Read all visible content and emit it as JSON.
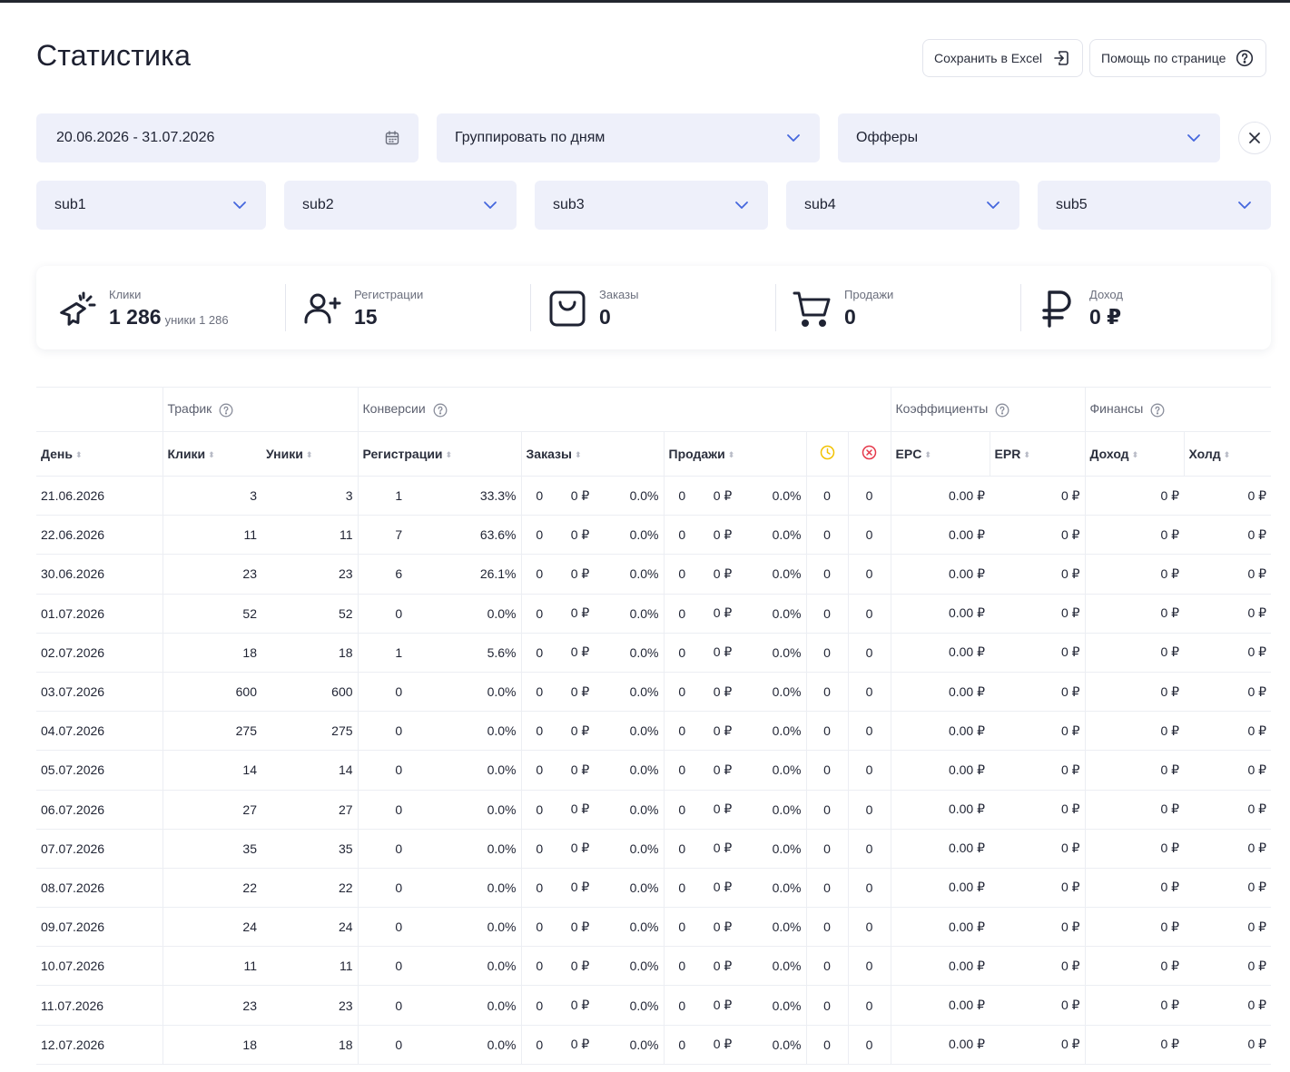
{
  "page": {
    "title": "Статистика"
  },
  "toolbar": {
    "excel_label": "Сохранить в Excel",
    "help_label": "Помощь по странице"
  },
  "filters": {
    "date_range": "20.06.2026 - 31.07.2026",
    "group_by": "Группировать по дням",
    "offers": "Офферы",
    "subs": [
      "sub1",
      "sub2",
      "sub3",
      "sub4",
      "sub5"
    ]
  },
  "kpis": {
    "clicks": {
      "label": "Клики",
      "value": "1 286",
      "sub": "уники 1 286",
      "icon": "cursor-click-icon"
    },
    "registrations": {
      "label": "Регистрации",
      "value": "15",
      "icon": "user-plus-icon"
    },
    "orders": {
      "label": "Заказы",
      "value": "0",
      "icon": "shopping-bag-icon"
    },
    "sales": {
      "label": "Продажи",
      "value": "0",
      "icon": "shopping-cart-icon"
    },
    "income": {
      "label": "Доход",
      "value": "0 ₽",
      "icon": "ruble-icon"
    }
  },
  "table": {
    "groups": {
      "traffic": "Трафик",
      "conversions": "Конверсии",
      "coefficients": "Коэффициенты",
      "finances": "Финансы"
    },
    "columns": {
      "day": "День",
      "clicks": "Клики",
      "uniques": "Уники",
      "registrations": "Регистрации",
      "orders": "Заказы",
      "sales": "Продажи",
      "epc": "EPC",
      "epr": "EPR",
      "income": "Доход",
      "hold": "Холд"
    },
    "status_icons": [
      "clock-icon",
      "cancel-circle-icon"
    ],
    "colors": {
      "pending": "#f2c200",
      "rejected": "#e5384a",
      "income": "#22c06b"
    },
    "rows": [
      [
        "21.06.2026",
        "3",
        "3",
        "1",
        "33.3%",
        "0",
        "0 ₽",
        "0.0%",
        "0",
        "0 ₽",
        "0.0%",
        "0",
        "0",
        "0.00 ₽",
        "0 ₽",
        "0 ₽",
        "0 ₽"
      ],
      [
        "22.06.2026",
        "11",
        "11",
        "7",
        "63.6%",
        "0",
        "0 ₽",
        "0.0%",
        "0",
        "0 ₽",
        "0.0%",
        "0",
        "0",
        "0.00 ₽",
        "0 ₽",
        "0 ₽",
        "0 ₽"
      ],
      [
        "30.06.2026",
        "23",
        "23",
        "6",
        "26.1%",
        "0",
        "0 ₽",
        "0.0%",
        "0",
        "0 ₽",
        "0.0%",
        "0",
        "0",
        "0.00 ₽",
        "0 ₽",
        "0 ₽",
        "0 ₽"
      ],
      [
        "01.07.2026",
        "52",
        "52",
        "0",
        "0.0%",
        "0",
        "0 ₽",
        "0.0%",
        "0",
        "0 ₽",
        "0.0%",
        "0",
        "0",
        "0.00 ₽",
        "0 ₽",
        "0 ₽",
        "0 ₽"
      ],
      [
        "02.07.2026",
        "18",
        "18",
        "1",
        "5.6%",
        "0",
        "0 ₽",
        "0.0%",
        "0",
        "0 ₽",
        "0.0%",
        "0",
        "0",
        "0.00 ₽",
        "0 ₽",
        "0 ₽",
        "0 ₽"
      ],
      [
        "03.07.2026",
        "600",
        "600",
        "0",
        "0.0%",
        "0",
        "0 ₽",
        "0.0%",
        "0",
        "0 ₽",
        "0.0%",
        "0",
        "0",
        "0.00 ₽",
        "0 ₽",
        "0 ₽",
        "0 ₽"
      ],
      [
        "04.07.2026",
        "275",
        "275",
        "0",
        "0.0%",
        "0",
        "0 ₽",
        "0.0%",
        "0",
        "0 ₽",
        "0.0%",
        "0",
        "0",
        "0.00 ₽",
        "0 ₽",
        "0 ₽",
        "0 ₽"
      ],
      [
        "05.07.2026",
        "14",
        "14",
        "0",
        "0.0%",
        "0",
        "0 ₽",
        "0.0%",
        "0",
        "0 ₽",
        "0.0%",
        "0",
        "0",
        "0.00 ₽",
        "0 ₽",
        "0 ₽",
        "0 ₽"
      ],
      [
        "06.07.2026",
        "27",
        "27",
        "0",
        "0.0%",
        "0",
        "0 ₽",
        "0.0%",
        "0",
        "0 ₽",
        "0.0%",
        "0",
        "0",
        "0.00 ₽",
        "0 ₽",
        "0 ₽",
        "0 ₽"
      ],
      [
        "07.07.2026",
        "35",
        "35",
        "0",
        "0.0%",
        "0",
        "0 ₽",
        "0.0%",
        "0",
        "0 ₽",
        "0.0%",
        "0",
        "0",
        "0.00 ₽",
        "0 ₽",
        "0 ₽",
        "0 ₽"
      ],
      [
        "08.07.2026",
        "22",
        "22",
        "0",
        "0.0%",
        "0",
        "0 ₽",
        "0.0%",
        "0",
        "0 ₽",
        "0.0%",
        "0",
        "0",
        "0.00 ₽",
        "0 ₽",
        "0 ₽",
        "0 ₽"
      ],
      [
        "09.07.2026",
        "24",
        "24",
        "0",
        "0.0%",
        "0",
        "0 ₽",
        "0.0%",
        "0",
        "0 ₽",
        "0.0%",
        "0",
        "0",
        "0.00 ₽",
        "0 ₽",
        "0 ₽",
        "0 ₽"
      ],
      [
        "10.07.2026",
        "11",
        "11",
        "0",
        "0.0%",
        "0",
        "0 ₽",
        "0.0%",
        "0",
        "0 ₽",
        "0.0%",
        "0",
        "0",
        "0.00 ₽",
        "0 ₽",
        "0 ₽",
        "0 ₽"
      ],
      [
        "11.07.2026",
        "23",
        "23",
        "0",
        "0.0%",
        "0",
        "0 ₽",
        "0.0%",
        "0",
        "0 ₽",
        "0.0%",
        "0",
        "0",
        "0.00 ₽",
        "0 ₽",
        "0 ₽",
        "0 ₽"
      ],
      [
        "12.07.2026",
        "18",
        "18",
        "0",
        "0.0%",
        "0",
        "0 ₽",
        "0.0%",
        "0",
        "0 ₽",
        "0.0%",
        "0",
        "0",
        "0.00 ₽",
        "0 ₽",
        "0 ₽",
        "0 ₽"
      ]
    ]
  }
}
